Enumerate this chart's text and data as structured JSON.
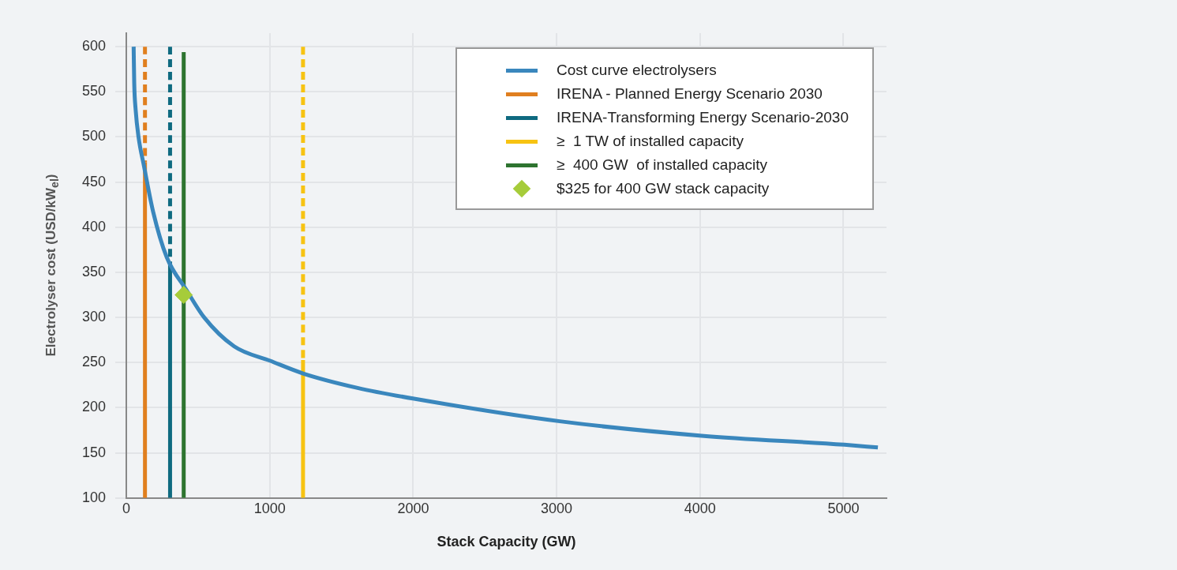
{
  "chart_data": {
    "type": "line",
    "xlabel": "Stack Capacity (GW)",
    "ylabel": "Electrolyser cost (USD/kW$_{el}$)",
    "xlim": [
      0,
      5300
    ],
    "xticks": [
      0,
      1000,
      2000,
      3000,
      4000,
      5000
    ],
    "ylim": [
      100,
      615
    ],
    "yticks": [
      100,
      150,
      200,
      250,
      300,
      350,
      400,
      450,
      500,
      550,
      600
    ],
    "grid": true,
    "legend": "top right",
    "marker": "none",
    "line_style": "solid",
    "series": [
      {
        "name": "Cost curve electrolysers",
        "color": "#3a87bd",
        "x": [
          51,
          55,
          65,
          85,
          124,
          187,
          281,
          421,
          543,
          752,
          1003,
          1232,
          1612,
          2006,
          3023,
          4011,
          5006,
          5240
        ],
        "values": [
          600,
          560,
          530,
          500,
          467,
          417,
          367,
          330,
          300,
          268,
          252,
          238,
          222,
          210,
          185,
          169,
          159,
          156
        ]
      },
      {
        "name": "IRENA - Planned Energy Scenario 2030",
        "color": "#e07f1f",
        "x": [
          130,
          130
        ],
        "values": [
          100,
          472
        ]
      },
      {
        "name": "IRENA-Transforming Energy Scenario-2030",
        "color": "#0f6a80",
        "x": [
          305,
          305
        ],
        "values": [
          100,
          362
        ]
      },
      {
        "name": "≥  1 TW of installed capacity",
        "color": "#f7c312",
        "x": [
          1232,
          1232
        ],
        "values": [
          100,
          253
        ]
      },
      {
        "name": "≥  400 GW  of installed capacity",
        "color": "#2e7430",
        "x": [
          400,
          400
        ],
        "values": [
          100,
          594
        ]
      },
      {
        "name": "$325 for 400 GW stack capacity",
        "type": "scatter",
        "marker": "diamond",
        "color": "#a6cc3a",
        "x": [
          400
        ],
        "values": [
          325
        ]
      },
      {
        "color": "#e07f1f",
        "line_style": "dashed",
        "x": [
          130,
          130
        ],
        "values": [
          472,
          600
        ]
      },
      {
        "color": "#0f6a80",
        "line_style": "dashed",
        "x": [
          305,
          305
        ],
        "values": [
          362,
          600
        ]
      },
      {
        "color": "#f7c312",
        "line_style": "dashed",
        "x": [
          1232,
          1232
        ],
        "values": [
          253,
          600
        ]
      }
    ]
  }
}
